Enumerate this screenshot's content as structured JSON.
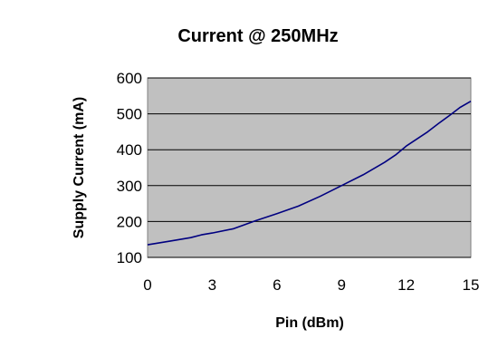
{
  "chart_data": {
    "type": "line",
    "title": "Current @ 250MHz",
    "xlabel": "Pin (dBm)",
    "ylabel": "Supply Current (mA)",
    "xlim": [
      0,
      15
    ],
    "ylim": [
      100,
      600
    ],
    "xticks": [
      0,
      3,
      6,
      9,
      12,
      15
    ],
    "yticks": [
      100,
      200,
      300,
      400,
      500,
      600
    ],
    "grid": "horizontal",
    "legend": "none",
    "plot_background": "#C0C0C0",
    "series": [
      {
        "color": "#000080",
        "x": [
          0,
          1,
          2,
          2.5,
          3,
          4,
          5,
          6,
          7,
          8,
          9,
          10,
          11,
          11.5,
          12,
          13,
          13.5,
          14,
          14.5,
          15
        ],
        "y": [
          135,
          145,
          155,
          163,
          168,
          180,
          202,
          222,
          243,
          270,
          300,
          330,
          365,
          385,
          410,
          450,
          473,
          495,
          518,
          535
        ]
      }
    ]
  }
}
